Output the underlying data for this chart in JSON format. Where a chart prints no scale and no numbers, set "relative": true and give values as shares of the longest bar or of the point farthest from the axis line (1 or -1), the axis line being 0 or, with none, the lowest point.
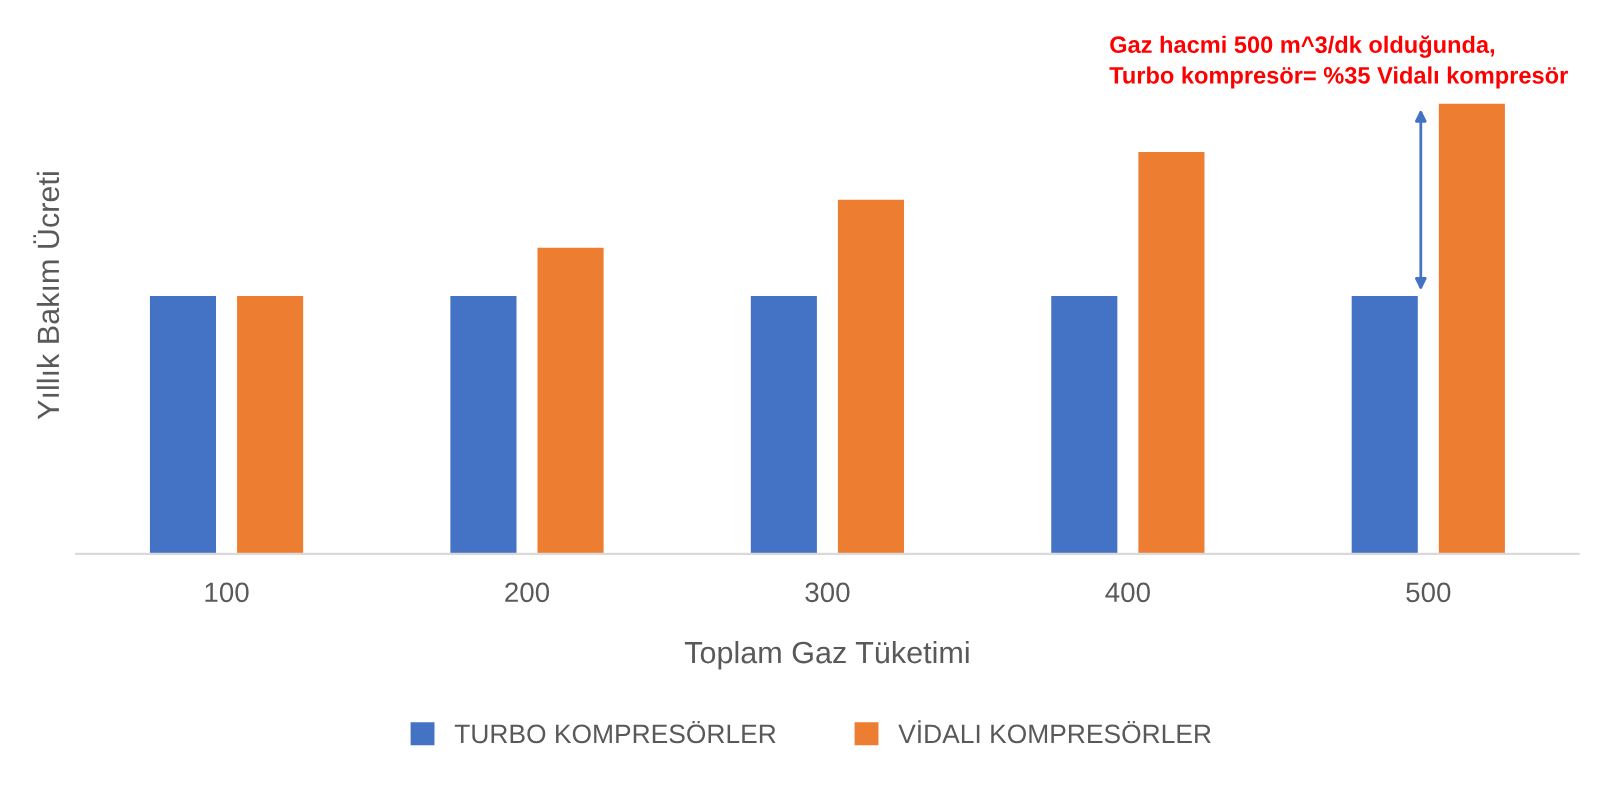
{
  "chart_data": {
    "type": "bar",
    "relative": true,
    "categories": [
      "100",
      "200",
      "300",
      "400",
      "500"
    ],
    "series": [
      {
        "name": "TURBO KOMPRESÖRLER",
        "color": "#4472c4",
        "values": [
          0.573,
          0.573,
          0.573,
          0.573,
          0.573
        ]
      },
      {
        "name": "VİDALI KOMPRESÖRLER",
        "color": "#ed7d31",
        "values": [
          0.573,
          0.68,
          0.787,
          0.893,
          1
        ]
      }
    ],
    "xlabel": "Toplam Gaz Tüketimi",
    "ylabel": "Yıllık Bakım Ücreti",
    "annotations": [
      "Gaz hacmi 500 m^3/dk olduğunda,\nTurbo kompresör= %35 Vidalı kompresör"
    ],
    "legend": "bottom",
    "grid": false
  }
}
